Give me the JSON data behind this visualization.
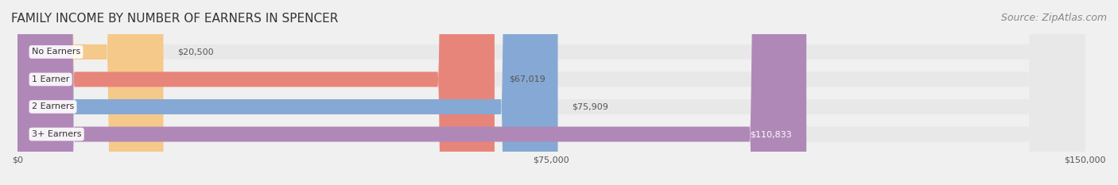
{
  "title": "FAMILY INCOME BY NUMBER OF EARNERS IN SPENCER",
  "source": "Source: ZipAtlas.com",
  "categories": [
    "No Earners",
    "1 Earner",
    "2 Earners",
    "3+ Earners"
  ],
  "values": [
    20500,
    67019,
    75909,
    110833
  ],
  "bar_colors": [
    "#f5c98a",
    "#e8857a",
    "#85a9d4",
    "#b088b8"
  ],
  "label_colors": [
    "#555555",
    "#555555",
    "#555555",
    "#ffffff"
  ],
  "value_labels": [
    "$20,500",
    "$67,019",
    "$75,909",
    "$110,833"
  ],
  "xlim": [
    0,
    150000
  ],
  "xticks": [
    0,
    75000,
    150000
  ],
  "xticklabels": [
    "$0",
    "$75,000",
    "$150,000"
  ],
  "bar_height": 0.55,
  "background_color": "#f0f0f0",
  "bar_background_color": "#e8e8e8",
  "title_fontsize": 11,
  "source_fontsize": 9
}
